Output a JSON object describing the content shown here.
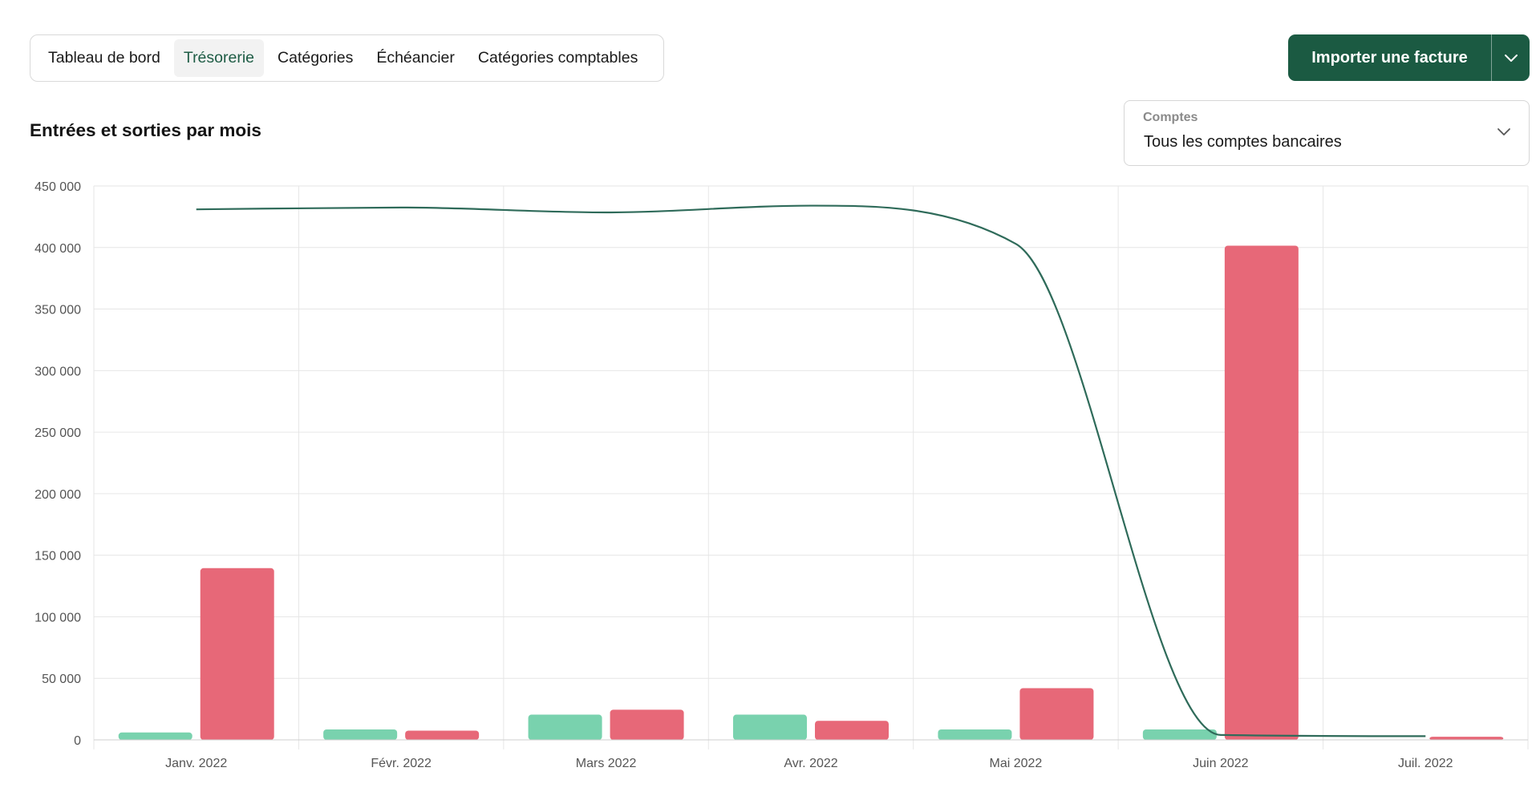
{
  "tabs": [
    {
      "label": "Tableau de bord"
    },
    {
      "label": "Trésorerie",
      "active": true
    },
    {
      "label": "Catégories"
    },
    {
      "label": "Échéancier"
    },
    {
      "label": "Catégories comptables"
    }
  ],
  "import_button": {
    "label": "Importer une facture",
    "caret_icon": "chevron-down-icon"
  },
  "chart_title": "Entrées et sorties par mois",
  "accounts": {
    "label": "Comptes",
    "value": "Tous les comptes bancaires",
    "caret_icon": "chevron-down-icon"
  },
  "colors": {
    "inflow": "#79d2ae",
    "outflow": "#e76878",
    "balance": "#2f6b5a",
    "grid": "#e6e6e6",
    "brand": "#1b5a42"
  },
  "chart_data": {
    "type": "bar",
    "categories": [
      "Janv. 2022",
      "Févr. 2022",
      "Mars 2022",
      "Avr. 2022",
      "Mai 2022",
      "Juin 2022",
      "Juil. 2022"
    ],
    "series": [
      {
        "kind": "bar",
        "role": "inflow",
        "values": [
          6000,
          8500,
          20500,
          20500,
          8500,
          8500,
          0
        ]
      },
      {
        "kind": "bar",
        "role": "outflow",
        "values": [
          139500,
          7500,
          24500,
          15500,
          42000,
          401500,
          2500
        ]
      },
      {
        "kind": "line",
        "role": "balance",
        "values": [
          431000,
          432500,
          428500,
          434000,
          403000,
          4000,
          3000
        ]
      }
    ],
    "yticks": [
      "0",
      "50 000",
      "100 000",
      "150 000",
      "200 000",
      "250 000",
      "300 000",
      "350 000",
      "400 000",
      "450 000"
    ],
    "ylim": [
      0,
      450000
    ],
    "grid": true,
    "legend": "none"
  }
}
